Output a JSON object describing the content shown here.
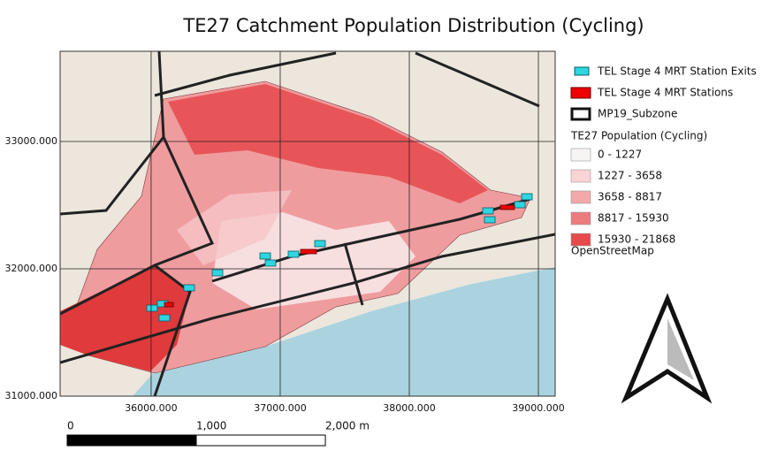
{
  "title": "TE27 Catchment Population Distribution (Cycling)",
  "map": {
    "xlim": [
      35295,
      39130
    ],
    "ylim": [
      31000,
      33708
    ],
    "xticks": [
      {
        "value": 36000,
        "label": "36000.000"
      },
      {
        "value": 37000,
        "label": "37000.000"
      },
      {
        "value": 38000,
        "label": "38000.000"
      },
      {
        "value": 39000,
        "label": "39000.000"
      }
    ],
    "yticks": [
      {
        "value": 31000,
        "label": "31000.000"
      },
      {
        "value": 32000,
        "label": "32000.000"
      },
      {
        "value": 33000,
        "label": "33000.000"
      }
    ]
  },
  "legend": {
    "layers": [
      "TEL Stage 4 MRT Station Exits",
      "TEL Stage 4 MRT Stations",
      "MP19_Subzone"
    ],
    "group_title": "TE27 Population (Cycling)",
    "classes": [
      {
        "label": "0 - 1227",
        "color": "#f7f4f4"
      },
      {
        "label": "1227 - 3658",
        "color": "#f8d4d4"
      },
      {
        "label": "3658 - 8817",
        "color": "#f3a9aa"
      },
      {
        "label": "8817 - 15930",
        "color": "#ec7b7d"
      },
      {
        "label": "15930 - 21868",
        "color": "#e64a4b"
      }
    ],
    "basemap": "OpenStreetMap"
  },
  "scale_bar": {
    "ticks": [
      0,
      {
        "value": 1000,
        "label": "1,000"
      },
      {
        "value": 2000,
        "label": "2,000 m"
      }
    ]
  }
}
